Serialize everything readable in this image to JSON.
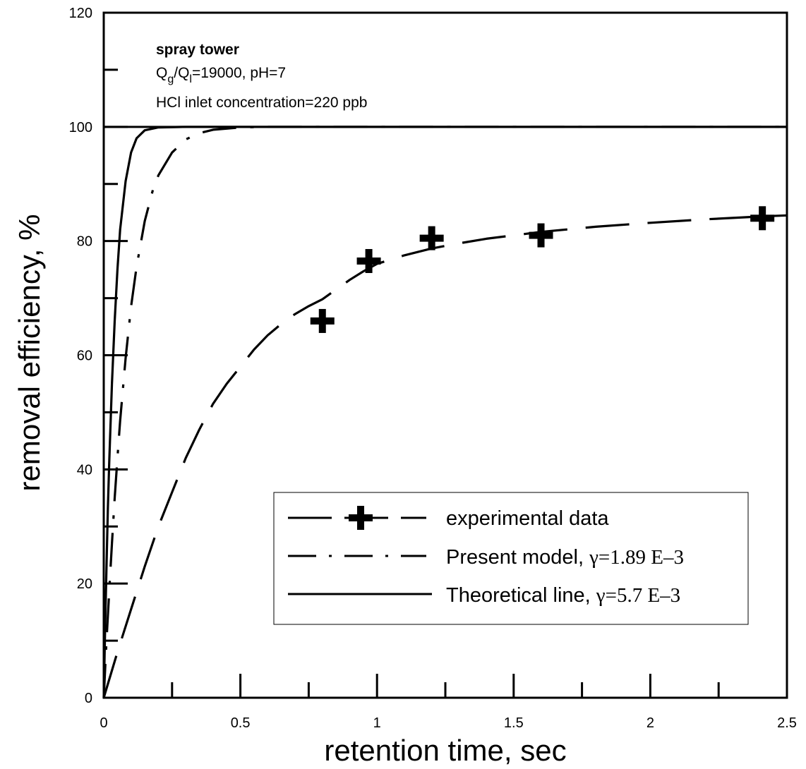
{
  "chart_data": {
    "type": "line",
    "xlabel": "retention time, sec",
    "ylabel": "removal efficiency, %",
    "xlim": [
      0,
      2.5
    ],
    "ylim": [
      0,
      120
    ],
    "x_ticks": [
      "0",
      "0.5",
      "1",
      "1.5",
      "2",
      "2.5"
    ],
    "y_ticks": [
      "0",
      "20",
      "40",
      "60",
      "80",
      "100",
      "120"
    ],
    "grid": false,
    "reference_line_y": 100,
    "annotations": {
      "line1": "spray tower",
      "line2_prefix": "Q",
      "line2_sub1": "g",
      "line2_mid": "/Q",
      "line2_sub2": "l",
      "line2_suffix": "=19000, pH=7",
      "line3": "HCl inlet concentration=220 ppb"
    },
    "legend_placement": "bottom-right",
    "legend": [
      {
        "text": "experimental data",
        "gamma": ""
      },
      {
        "text": "Present model, ",
        "gamma": "γ=1.89 E–3"
      },
      {
        "text": "Theoretical line, ",
        "gamma": "γ=5.7 E–3"
      }
    ],
    "series": [
      {
        "name": "experimental data",
        "style": "markers",
        "x": [
          0.8,
          0.97,
          1.2,
          1.6,
          2.41
        ],
        "y": [
          66,
          76.5,
          80.5,
          81,
          84
        ]
      },
      {
        "name": "experimental data",
        "style": "long-dash",
        "x": [
          0,
          0.05,
          0.1,
          0.15,
          0.2,
          0.25,
          0.3,
          0.35,
          0.4,
          0.45,
          0.5,
          0.55,
          0.6,
          0.65,
          0.7,
          0.75,
          0.8,
          0.85,
          0.9,
          0.95,
          1.0,
          1.1,
          1.2,
          1.3,
          1.4,
          1.5,
          1.6,
          1.8,
          2.0,
          2.2,
          2.4,
          2.5
        ],
        "y": [
          0,
          8,
          15.5,
          23,
          30,
          36,
          42,
          47,
          51.5,
          55,
          58,
          61,
          63.5,
          65.5,
          67.2,
          68.6,
          69.8,
          71.5,
          73.2,
          74.7,
          76,
          77.5,
          78.7,
          79.6,
          80.4,
          81,
          81.6,
          82.5,
          83.2,
          83.8,
          84.3,
          84.5
        ]
      },
      {
        "name": "Present model",
        "style": "dash-dot",
        "x": [
          0,
          0.01,
          0.02,
          0.03,
          0.04,
          0.05,
          0.06,
          0.08,
          0.1,
          0.12,
          0.15,
          0.18,
          0.2,
          0.25,
          0.3,
          0.35,
          0.4,
          0.5,
          0.6,
          0.8,
          1.0,
          1.5,
          2.0,
          2.5
        ],
        "y": [
          0,
          10,
          18.5,
          27,
          35,
          42,
          48.5,
          59.5,
          68.5,
          75.5,
          83.5,
          89,
          91.5,
          95.5,
          97.8,
          98.9,
          99.5,
          99.9,
          100,
          100,
          100,
          100,
          100,
          100
        ]
      },
      {
        "name": "Theoretical line",
        "style": "solid",
        "x": [
          0,
          0.005,
          0.01,
          0.015,
          0.02,
          0.03,
          0.04,
          0.05,
          0.06,
          0.08,
          0.1,
          0.12,
          0.15,
          0.2,
          0.3,
          0.5,
          1.0,
          2.0,
          2.5
        ],
        "y": [
          0,
          12,
          23,
          33,
          41,
          55,
          66,
          75,
          82,
          90.5,
          95.5,
          98,
          99.4,
          99.9,
          100,
          100,
          100,
          100,
          100
        ]
      }
    ]
  }
}
